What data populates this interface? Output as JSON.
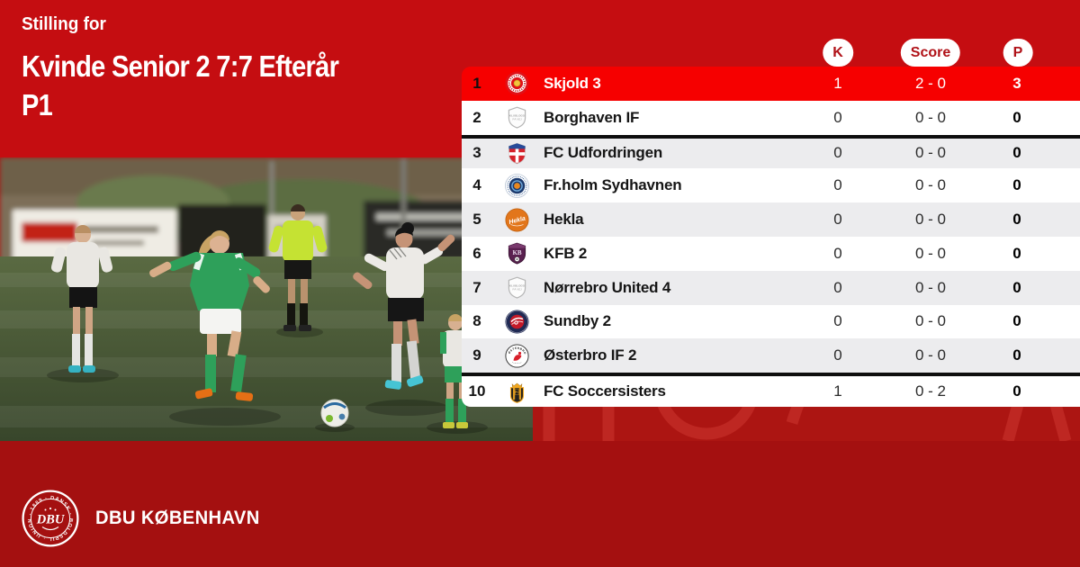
{
  "colors": {
    "bg_top": "#c50d11",
    "bg_band": "#ac1512",
    "bg_bottom": "#a41010",
    "row_highlight": "#f60000",
    "row_alt": "#ececee",
    "pill_text": "#b01218",
    "separator": "#0e0e0e"
  },
  "header": {
    "eyebrow": "Stilling for",
    "title_line1": "Kvinde Senior 2 7:7 Efterår",
    "title_line2": "P1"
  },
  "table": {
    "columns": [
      {
        "key": "k",
        "label": "K"
      },
      {
        "key": "score",
        "label": "Score"
      },
      {
        "key": "p",
        "label": "P"
      }
    ],
    "placeholder_logo_lines": [
      "KLUBLOGO",
      "PÅ VEJ"
    ],
    "osterbro_crest_text": "ØSTERBRO",
    "rows": [
      {
        "pos": "1",
        "team": "Skjold 3",
        "k": "1",
        "score": "2 - 0",
        "p": "3",
        "logo": "skjold",
        "highlight": true
      },
      {
        "pos": "2",
        "team": "Borghaven IF",
        "k": "0",
        "score": "0 - 0",
        "p": "0",
        "logo": "placeholder"
      },
      {
        "pos": "3",
        "team": "FC Udfordringen",
        "k": "0",
        "score": "0 - 0",
        "p": "0",
        "logo": "udfordringen",
        "separator_above": true
      },
      {
        "pos": "4",
        "team": "Fr.holm Sydhavnen",
        "k": "0",
        "score": "0 - 0",
        "p": "0",
        "logo": "frholm"
      },
      {
        "pos": "5",
        "team": "Hekla",
        "k": "0",
        "score": "0 - 0",
        "p": "0",
        "logo": "hekla"
      },
      {
        "pos": "6",
        "team": "KFB 2",
        "k": "0",
        "score": "0 - 0",
        "p": "0",
        "logo": "kfb"
      },
      {
        "pos": "7",
        "team": "Nørrebro United 4",
        "k": "0",
        "score": "0 - 0",
        "p": "0",
        "logo": "placeholder"
      },
      {
        "pos": "8",
        "team": "Sundby 2",
        "k": "0",
        "score": "0 - 0",
        "p": "0",
        "logo": "sundby"
      },
      {
        "pos": "9",
        "team": "Østerbro IF 2",
        "k": "0",
        "score": "0 - 0",
        "p": "0",
        "logo": "osterbro"
      },
      {
        "pos": "10",
        "team": "FC Soccersisters",
        "k": "1",
        "score": "0 - 2",
        "p": "0",
        "logo": "soccersisters",
        "separator_above": true
      }
    ]
  },
  "footer": {
    "org_name": "DBU KØBENHAVN",
    "crest": {
      "ring_text": "DANSK · BOLDSPIL · UNION · 1889 ·",
      "monogram": "DBU"
    }
  }
}
